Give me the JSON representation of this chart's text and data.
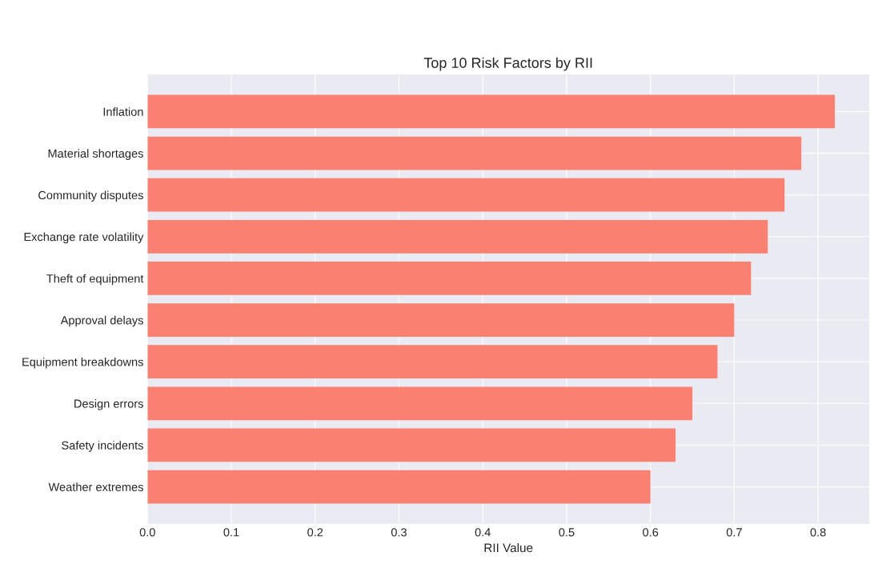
{
  "chart_data": {
    "type": "bar",
    "orientation": "horizontal",
    "title": "Top 10 Risk Factors by RII",
    "xlabel": "RII Value",
    "categories": [
      "Inflation",
      "Material shortages",
      "Community disputes",
      "Exchange rate volatility",
      "Theft of equipment",
      "Approval delays",
      "Equipment breakdowns",
      "Design errors",
      "Safety incidents",
      "Weather extremes"
    ],
    "values": [
      0.82,
      0.78,
      0.76,
      0.74,
      0.72,
      0.7,
      0.68,
      0.65,
      0.63,
      0.6
    ],
    "color": "#fa8072",
    "xlim": [
      0,
      0.861
    ],
    "xticks": [
      {
        "value": 0,
        "label": "0.0"
      },
      0.1,
      0.2,
      0.3,
      0.4,
      0.5,
      0.6,
      0.7,
      0.8
    ],
    "grid": true
  }
}
